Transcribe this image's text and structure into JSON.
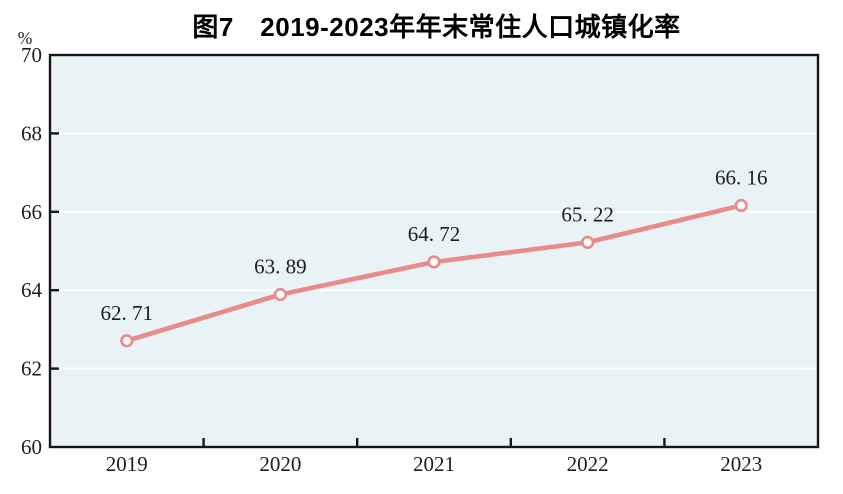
{
  "figure": {
    "title": "图7　2019-2023年年末常住人口城镇化率",
    "y_axis_unit": "%"
  },
  "chart_data": {
    "type": "line",
    "title": "图7　2019-2023年年末常住人口城镇化率",
    "categories": [
      "2019",
      "2020",
      "2021",
      "2022",
      "2023"
    ],
    "series": [
      {
        "name": "年末常住人口城镇化率",
        "values": [
          62.71,
          63.89,
          64.72,
          65.22,
          66.16
        ],
        "point_labels": [
          "62. 71",
          "63. 89",
          "64. 72",
          "65. 22",
          "66. 16"
        ]
      }
    ],
    "xlabel": "",
    "ylabel": "%",
    "ylim": [
      60,
      70
    ],
    "y_ticks": [
      60,
      62,
      64,
      66,
      68,
      70
    ],
    "grid": "horizontal-white",
    "legend": "none",
    "marker": "open-circle"
  },
  "colors": {
    "line": "#e78b8b",
    "marker_fill": "#fdfdfd",
    "plot_bg": "#e9f2f5",
    "grid": "#ffffff",
    "axis": "#161616",
    "tick_label": "#1e1e1e",
    "data_label": "#1c1c1c",
    "title": "#000000"
  }
}
